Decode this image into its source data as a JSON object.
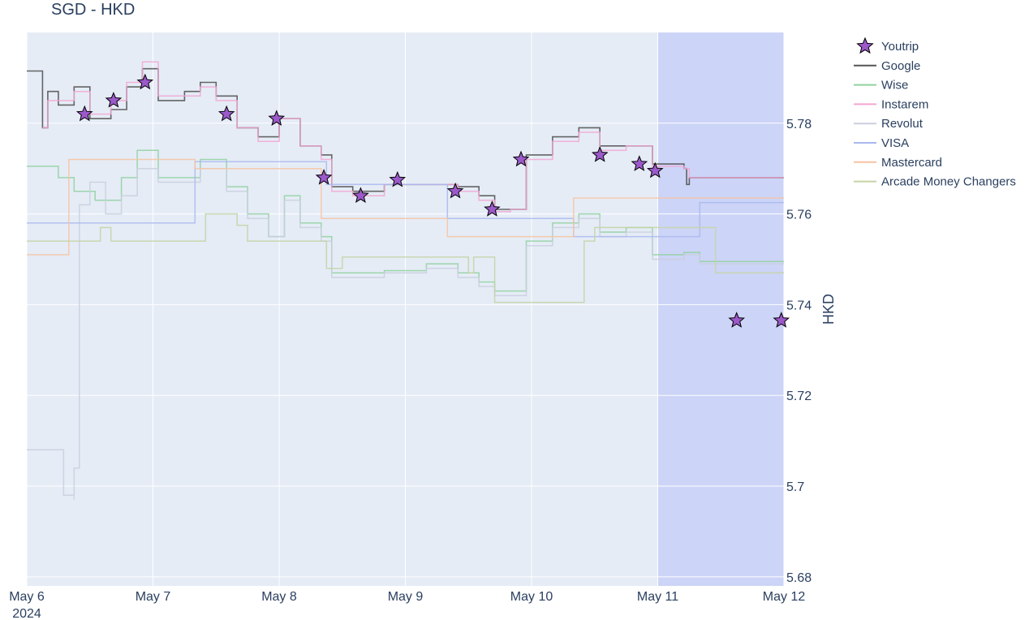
{
  "chart_data": {
    "type": "line",
    "title": "SGD - HKD",
    "ylabel": "HKD",
    "xlabel": "",
    "x_range": [
      "2024-05-06",
      "2024-05-12"
    ],
    "ylim": [
      5.678,
      5.8
    ],
    "yaxis_side": "right",
    "y_ticks": [
      5.68,
      5.7,
      5.72,
      5.74,
      5.76,
      5.78
    ],
    "y_tick_labels": [
      "5.68",
      "5.7",
      "5.72",
      "5.74",
      "5.76",
      "5.78"
    ],
    "x_ticks": [
      "2024-05-06",
      "2024-05-07",
      "2024-05-08",
      "2024-05-09",
      "2024-05-10",
      "2024-05-11",
      "2024-05-12"
    ],
    "x_tick_labels": [
      "May 6",
      "May 7",
      "May 8",
      "May 9",
      "May 10",
      "May 11",
      "May 12"
    ],
    "x_year_label": "2024",
    "shaded_region": {
      "x0": "2024-05-11",
      "x1": "2024-05-12",
      "color": "#ccd4f7"
    },
    "plot_bg": "#e5ecf6",
    "grid": true,
    "legend_position": "right",
    "series": [
      {
        "name": "Youtrip",
        "mode": "markers",
        "marker": "star",
        "color": "#9b59c9",
        "points": [
          [
            "2024-05-06 11:00",
            5.782
          ],
          [
            "2024-05-06 16:30",
            5.785
          ],
          [
            "2024-05-06 22:30",
            5.789
          ],
          [
            "2024-05-07 14:00",
            5.782
          ],
          [
            "2024-05-07 23:30",
            5.781
          ],
          [
            "2024-05-08 08:30",
            5.768
          ],
          [
            "2024-05-08 15:30",
            5.764
          ],
          [
            "2024-05-08 22:30",
            5.7675
          ],
          [
            "2024-05-09 09:30",
            5.765
          ],
          [
            "2024-05-09 16:30",
            5.761
          ],
          [
            "2024-05-09 22:00",
            5.772
          ],
          [
            "2024-05-10 13:00",
            5.773
          ],
          [
            "2024-05-10 20:30",
            5.771
          ],
          [
            "2024-05-10 23:30",
            5.7695
          ],
          [
            "2024-05-11 15:00",
            5.7365
          ],
          [
            "2024-05-11 23:30",
            5.7365
          ]
        ]
      },
      {
        "name": "Google",
        "mode": "line",
        "color": "#555555",
        "points": [
          [
            "2024-05-06 00:00",
            5.7915
          ],
          [
            "2024-05-06 03:00",
            5.779
          ],
          [
            "2024-05-06 04:00",
            5.787
          ],
          [
            "2024-05-06 06:00",
            5.784
          ],
          [
            "2024-05-06 09:00",
            5.788
          ],
          [
            "2024-05-06 12:00",
            5.781
          ],
          [
            "2024-05-06 16:00",
            5.783
          ],
          [
            "2024-05-06 19:00",
            5.788
          ],
          [
            "2024-05-06 22:00",
            5.792
          ],
          [
            "2024-05-07 01:00",
            5.785
          ],
          [
            "2024-05-07 06:00",
            5.787
          ],
          [
            "2024-05-07 09:00",
            5.789
          ],
          [
            "2024-05-07 12:00",
            5.786
          ],
          [
            "2024-05-07 16:00",
            5.779
          ],
          [
            "2024-05-07 20:00",
            5.777
          ],
          [
            "2024-05-08 00:00",
            5.781
          ],
          [
            "2024-05-08 04:00",
            5.775
          ],
          [
            "2024-05-08 08:00",
            5.773
          ],
          [
            "2024-05-08 10:00",
            5.766
          ],
          [
            "2024-05-08 14:00",
            5.765
          ],
          [
            "2024-05-08 20:00",
            5.7665
          ],
          [
            "2024-05-09 04:00",
            5.7665
          ],
          [
            "2024-05-09 10:00",
            5.766
          ],
          [
            "2024-05-09 14:00",
            5.764
          ],
          [
            "2024-05-09 17:00",
            5.761
          ],
          [
            "2024-05-09 20:00",
            5.761
          ],
          [
            "2024-05-09 23:00",
            5.773
          ],
          [
            "2024-05-10 04:00",
            5.777
          ],
          [
            "2024-05-10 09:00",
            5.779
          ],
          [
            "2024-05-10 13:00",
            5.775
          ],
          [
            "2024-05-10 18:00",
            5.775
          ],
          [
            "2024-05-10 23:00",
            5.771
          ],
          [
            "2024-05-11 05:00",
            5.77
          ],
          [
            "2024-05-11 05:30",
            5.7665
          ],
          [
            "2024-05-11 06:00",
            5.768
          ],
          [
            "2024-05-12 00:00",
            5.768
          ]
        ]
      },
      {
        "name": "Wise",
        "mode": "line",
        "color": "#8fd19e",
        "points": [
          [
            "2024-05-06 00:00",
            5.7705
          ],
          [
            "2024-05-06 06:00",
            5.768
          ],
          [
            "2024-05-06 09:00",
            5.765
          ],
          [
            "2024-05-06 13:00",
            5.763
          ],
          [
            "2024-05-06 18:00",
            5.768
          ],
          [
            "2024-05-06 21:00",
            5.774
          ],
          [
            "2024-05-07 01:00",
            5.768
          ],
          [
            "2024-05-07 06:00",
            5.768
          ],
          [
            "2024-05-07 09:00",
            5.772
          ],
          [
            "2024-05-07 14:00",
            5.766
          ],
          [
            "2024-05-07 18:00",
            5.76
          ],
          [
            "2024-05-07 22:00",
            5.755
          ],
          [
            "2024-05-08 01:00",
            5.764
          ],
          [
            "2024-05-08 04:00",
            5.758
          ],
          [
            "2024-05-08 08:00",
            5.755
          ],
          [
            "2024-05-08 10:00",
            5.747
          ],
          [
            "2024-05-08 14:00",
            5.747
          ],
          [
            "2024-05-08 20:00",
            5.7475
          ],
          [
            "2024-05-09 04:00",
            5.749
          ],
          [
            "2024-05-09 10:00",
            5.747
          ],
          [
            "2024-05-09 14:00",
            5.745
          ],
          [
            "2024-05-09 17:00",
            5.743
          ],
          [
            "2024-05-09 20:00",
            5.743
          ],
          [
            "2024-05-09 23:00",
            5.754
          ],
          [
            "2024-05-10 04:00",
            5.758
          ],
          [
            "2024-05-10 09:00",
            5.76
          ],
          [
            "2024-05-10 13:00",
            5.756
          ],
          [
            "2024-05-10 18:00",
            5.757
          ],
          [
            "2024-05-10 23:00",
            5.751
          ],
          [
            "2024-05-11 05:00",
            5.7515
          ],
          [
            "2024-05-11 08:00",
            5.7495
          ],
          [
            "2024-05-12 00:00",
            5.7495
          ]
        ]
      },
      {
        "name": "Instarem",
        "mode": "line",
        "color": "#f3a6d2",
        "points": [
          [
            "2024-05-06 03:00",
            5.779
          ],
          [
            "2024-05-06 04:00",
            5.785
          ],
          [
            "2024-05-06 06:00",
            5.785
          ],
          [
            "2024-05-06 09:00",
            5.787
          ],
          [
            "2024-05-06 12:00",
            5.782
          ],
          [
            "2024-05-06 16:00",
            5.785
          ],
          [
            "2024-05-06 19:00",
            5.789
          ],
          [
            "2024-05-06 22:00",
            5.7935
          ],
          [
            "2024-05-07 01:00",
            5.786
          ],
          [
            "2024-05-07 06:00",
            5.786
          ],
          [
            "2024-05-07 09:00",
            5.788
          ],
          [
            "2024-05-07 12:00",
            5.785
          ],
          [
            "2024-05-07 16:00",
            5.779
          ],
          [
            "2024-05-07 20:00",
            5.776
          ],
          [
            "2024-05-08 00:00",
            5.781
          ],
          [
            "2024-05-08 04:00",
            5.775
          ],
          [
            "2024-05-08 08:00",
            5.772
          ],
          [
            "2024-05-08 10:00",
            5.765
          ],
          [
            "2024-05-08 14:00",
            5.764
          ],
          [
            "2024-05-08 20:00",
            5.7665
          ],
          [
            "2024-05-09 04:00",
            5.7665
          ],
          [
            "2024-05-09 10:00",
            5.765
          ],
          [
            "2024-05-09 14:00",
            5.763
          ],
          [
            "2024-05-09 17:00",
            5.7605
          ],
          [
            "2024-05-09 20:00",
            5.761
          ],
          [
            "2024-05-09 23:00",
            5.772
          ],
          [
            "2024-05-10 04:00",
            5.776
          ],
          [
            "2024-05-10 09:00",
            5.778
          ],
          [
            "2024-05-10 13:00",
            5.774
          ],
          [
            "2024-05-10 18:00",
            5.775
          ],
          [
            "2024-05-10 23:00",
            5.7705
          ],
          [
            "2024-05-11 05:00",
            5.77
          ],
          [
            "2024-05-11 06:00",
            5.768
          ],
          [
            "2024-05-12 00:00",
            5.768
          ]
        ]
      },
      {
        "name": "Revolut",
        "mode": "line",
        "color": "#c9cfdd",
        "points": [
          [
            "2024-05-06 00:00",
            5.708
          ],
          [
            "2024-05-06 07:00",
            5.708
          ],
          [
            "2024-05-06 07:00",
            5.698
          ],
          [
            "2024-05-06 09:00",
            5.697
          ],
          [
            "2024-05-06 09:00",
            5.704
          ],
          [
            "2024-05-06 10:00",
            5.705
          ],
          [
            "2024-05-06 10:00",
            5.762
          ],
          [
            "2024-05-06 12:00",
            5.767
          ],
          [
            "2024-05-06 15:00",
            5.76
          ],
          [
            "2024-05-06 18:00",
            5.764
          ],
          [
            "2024-05-06 21:00",
            5.77
          ],
          [
            "2024-05-07 01:00",
            5.767
          ],
          [
            "2024-05-07 06:00",
            5.767
          ],
          [
            "2024-05-07 09:00",
            5.77
          ],
          [
            "2024-05-07 14:00",
            5.765
          ],
          [
            "2024-05-07 18:00",
            5.759
          ],
          [
            "2024-05-07 22:00",
            5.755
          ],
          [
            "2024-05-08 01:00",
            5.763
          ],
          [
            "2024-05-08 04:00",
            5.757
          ],
          [
            "2024-05-08 08:00",
            5.754
          ],
          [
            "2024-05-08 10:00",
            5.746
          ],
          [
            "2024-05-08 14:00",
            5.746
          ],
          [
            "2024-05-08 20:00",
            5.747
          ],
          [
            "2024-05-09 04:00",
            5.748
          ],
          [
            "2024-05-09 10:00",
            5.746
          ],
          [
            "2024-05-09 14:00",
            5.744
          ],
          [
            "2024-05-09 17:00",
            5.742
          ],
          [
            "2024-05-09 20:00",
            5.742
          ],
          [
            "2024-05-09 23:00",
            5.753
          ],
          [
            "2024-05-10 04:00",
            5.757
          ],
          [
            "2024-05-10 09:00",
            5.759
          ],
          [
            "2024-05-10 13:00",
            5.755
          ],
          [
            "2024-05-10 18:00",
            5.756
          ],
          [
            "2024-05-10 23:00",
            5.75
          ],
          [
            "2024-05-11 05:00",
            5.751
          ],
          [
            "2024-05-11 08:00",
            5.749
          ],
          [
            "2024-05-12 00:00",
            5.749
          ]
        ]
      },
      {
        "name": "VISA",
        "mode": "line",
        "color": "#a9b8ee",
        "points": [
          [
            "2024-05-06 00:00",
            5.758
          ],
          [
            "2024-05-07 08:00",
            5.758
          ],
          [
            "2024-05-07 08:00",
            5.7715
          ],
          [
            "2024-05-08 09:00",
            5.7715
          ],
          [
            "2024-05-08 09:00",
            5.7665
          ],
          [
            "2024-05-09 08:00",
            5.7665
          ],
          [
            "2024-05-09 08:00",
            5.759
          ],
          [
            "2024-05-10 08:00",
            5.759
          ],
          [
            "2024-05-10 08:00",
            5.755
          ],
          [
            "2024-05-11 08:00",
            5.755
          ],
          [
            "2024-05-11 08:00",
            5.7625
          ],
          [
            "2024-05-12 00:00",
            5.7625
          ]
        ]
      },
      {
        "name": "Mastercard",
        "mode": "line",
        "color": "#f7c3a0",
        "points": [
          [
            "2024-05-06 00:00",
            5.751
          ],
          [
            "2024-05-06 08:00",
            5.751
          ],
          [
            "2024-05-06 08:00",
            5.772
          ],
          [
            "2024-05-07 08:00",
            5.772
          ],
          [
            "2024-05-07 08:00",
            5.77
          ],
          [
            "2024-05-08 08:00",
            5.77
          ],
          [
            "2024-05-08 08:00",
            5.759
          ],
          [
            "2024-05-09 08:00",
            5.759
          ],
          [
            "2024-05-09 08:00",
            5.755
          ],
          [
            "2024-05-10 08:00",
            5.755
          ],
          [
            "2024-05-10 08:00",
            5.7635
          ],
          [
            "2024-05-12 00:00",
            5.7635
          ]
        ]
      },
      {
        "name": "Arcade Money Changers",
        "mode": "line",
        "color": "#c4d4a3",
        "points": [
          [
            "2024-05-06 00:00",
            5.754
          ],
          [
            "2024-05-06 14:00",
            5.754
          ],
          [
            "2024-05-06 14:00",
            5.757
          ],
          [
            "2024-05-06 16:00",
            5.757
          ],
          [
            "2024-05-06 16:00",
            5.754
          ],
          [
            "2024-05-07 06:00",
            5.754
          ],
          [
            "2024-05-07 10:00",
            5.76
          ],
          [
            "2024-05-07 16:00",
            5.76
          ],
          [
            "2024-05-07 16:00",
            5.7575
          ],
          [
            "2024-05-07 18:00",
            5.7575
          ],
          [
            "2024-05-07 18:00",
            5.754
          ],
          [
            "2024-05-08 09:00",
            5.754
          ],
          [
            "2024-05-08 09:00",
            5.748
          ],
          [
            "2024-05-08 12:00",
            5.748
          ],
          [
            "2024-05-08 12:00",
            5.7505
          ],
          [
            "2024-05-09 12:00",
            5.7505
          ],
          [
            "2024-05-09 12:00",
            5.747
          ],
          [
            "2024-05-09 13:00",
            5.747
          ],
          [
            "2024-05-09 13:00",
            5.7505
          ],
          [
            "2024-05-09 17:00",
            5.7505
          ],
          [
            "2024-05-09 17:00",
            5.7405
          ],
          [
            "2024-05-10 10:00",
            5.7405
          ],
          [
            "2024-05-10 10:00",
            5.754
          ],
          [
            "2024-05-10 12:00",
            5.754
          ],
          [
            "2024-05-10 12:00",
            5.757
          ],
          [
            "2024-05-11 11:00",
            5.757
          ],
          [
            "2024-05-11 11:00",
            5.747
          ],
          [
            "2024-05-12 00:00",
            5.747
          ]
        ]
      }
    ]
  }
}
